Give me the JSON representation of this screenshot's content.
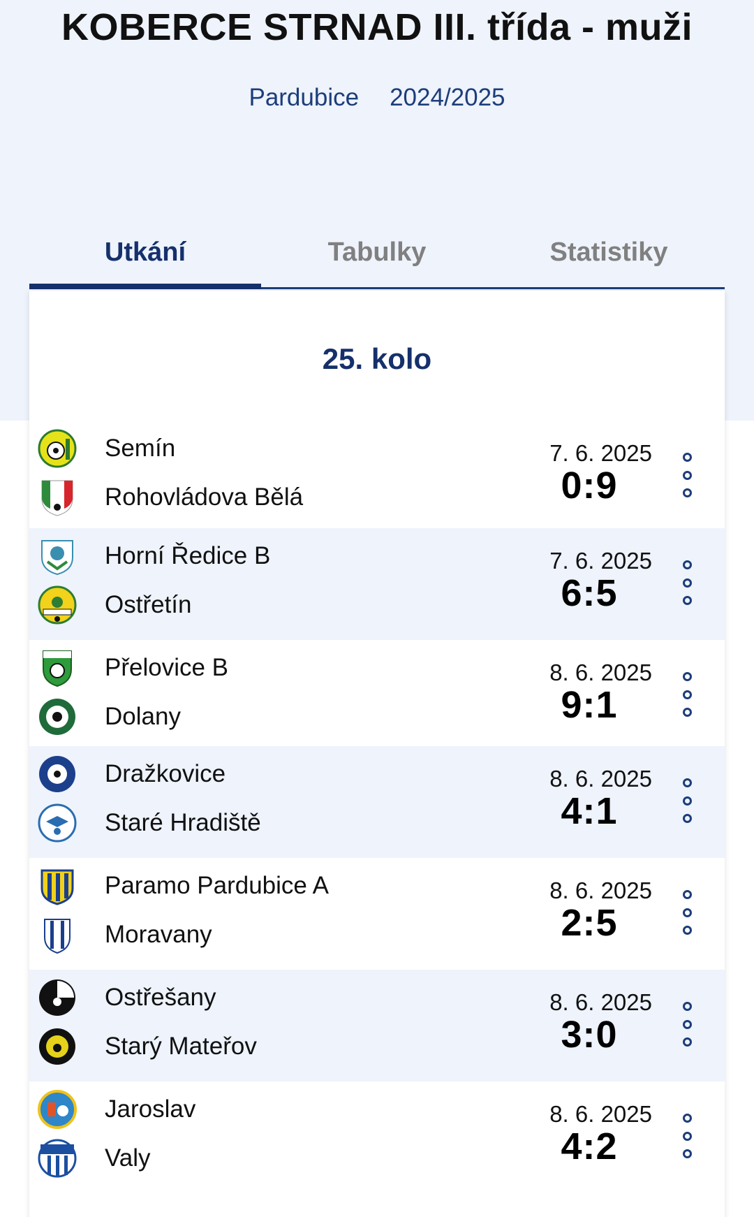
{
  "header": {
    "title": "KOBERCE STRNAD III. třída - muži",
    "region": "Pardubice",
    "season": "2024/2025"
  },
  "tabs": [
    {
      "label": "Utkání",
      "active": true
    },
    {
      "label": "Tabulky",
      "active": false
    },
    {
      "label": "Statistiky",
      "active": false
    }
  ],
  "round": {
    "title": "25. kolo"
  },
  "matches": [
    {
      "home": "Semín",
      "away": "Rohovládova Bělá",
      "date": "7. 6. 2025",
      "score": "0:9"
    },
    {
      "home": "Horní Ředice B",
      "away": "Ostřetín",
      "date": "7. 6. 2025",
      "score": "6:5"
    },
    {
      "home": "Přelovice B",
      "away": "Dolany",
      "date": "8. 6. 2025",
      "score": "9:1"
    },
    {
      "home": "Dražkovice",
      "away": "Staré Hradiště",
      "date": "8. 6. 2025",
      "score": "4:1"
    },
    {
      "home": "Paramo Pardubice A",
      "away": "Moravany",
      "date": "8. 6. 2025",
      "score": "2:5"
    },
    {
      "home": "Ostřešany",
      "away": "Starý Mateřov",
      "date": "8. 6. 2025",
      "score": "3:0"
    },
    {
      "home": "Jaroslav",
      "away": "Valy",
      "date": "8. 6. 2025",
      "score": "4:2"
    }
  ],
  "colors": {
    "accent": "#15306b",
    "header_bg": "#eef3fc",
    "row_alt_bg": "#eef3fc",
    "tab_inactive": "#808080"
  },
  "icons": {
    "crest": "team-crest-icon",
    "more": "more-vertical-icon"
  }
}
